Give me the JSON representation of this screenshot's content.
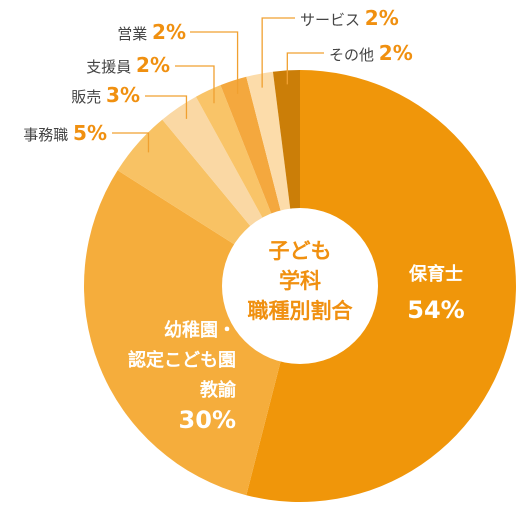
{
  "chart_data": {
    "type": "pie",
    "center_label": [
      "子ども",
      "学科",
      "職種別割合"
    ],
    "slices": [
      {
        "name": "保育士",
        "value": 54,
        "value_text": "54%",
        "color": "#f0960a"
      },
      {
        "name": "幼稚園・認定こども園教諭",
        "label_lines": [
          "幼稚園・",
          "認定こども園",
          "教諭"
        ],
        "value": 30,
        "value_text": "30%",
        "color": "#f5ad3c"
      },
      {
        "name": "事務職",
        "value": 5,
        "value_text": "5%",
        "color": "#f8c264"
      },
      {
        "name": "販売",
        "value": 3,
        "value_text": "3%",
        "color": "#fad8a4"
      },
      {
        "name": "支援員",
        "value": 2,
        "value_text": "2%",
        "color": "#f9c468"
      },
      {
        "name": "営業",
        "value": 2,
        "value_text": "2%",
        "color": "#f4a83e"
      },
      {
        "name": "サービス",
        "value": 2,
        "value_text": "2%",
        "color": "#fcdcaa"
      },
      {
        "name": "その他",
        "value": 2,
        "value_text": "2%",
        "color": "#cb7e08"
      }
    ],
    "line_color": "#f0a030",
    "value_color": "#f09010",
    "label_color": "#444444",
    "inner_label_color": "#ffffff",
    "center_text_color": "#f09010"
  }
}
